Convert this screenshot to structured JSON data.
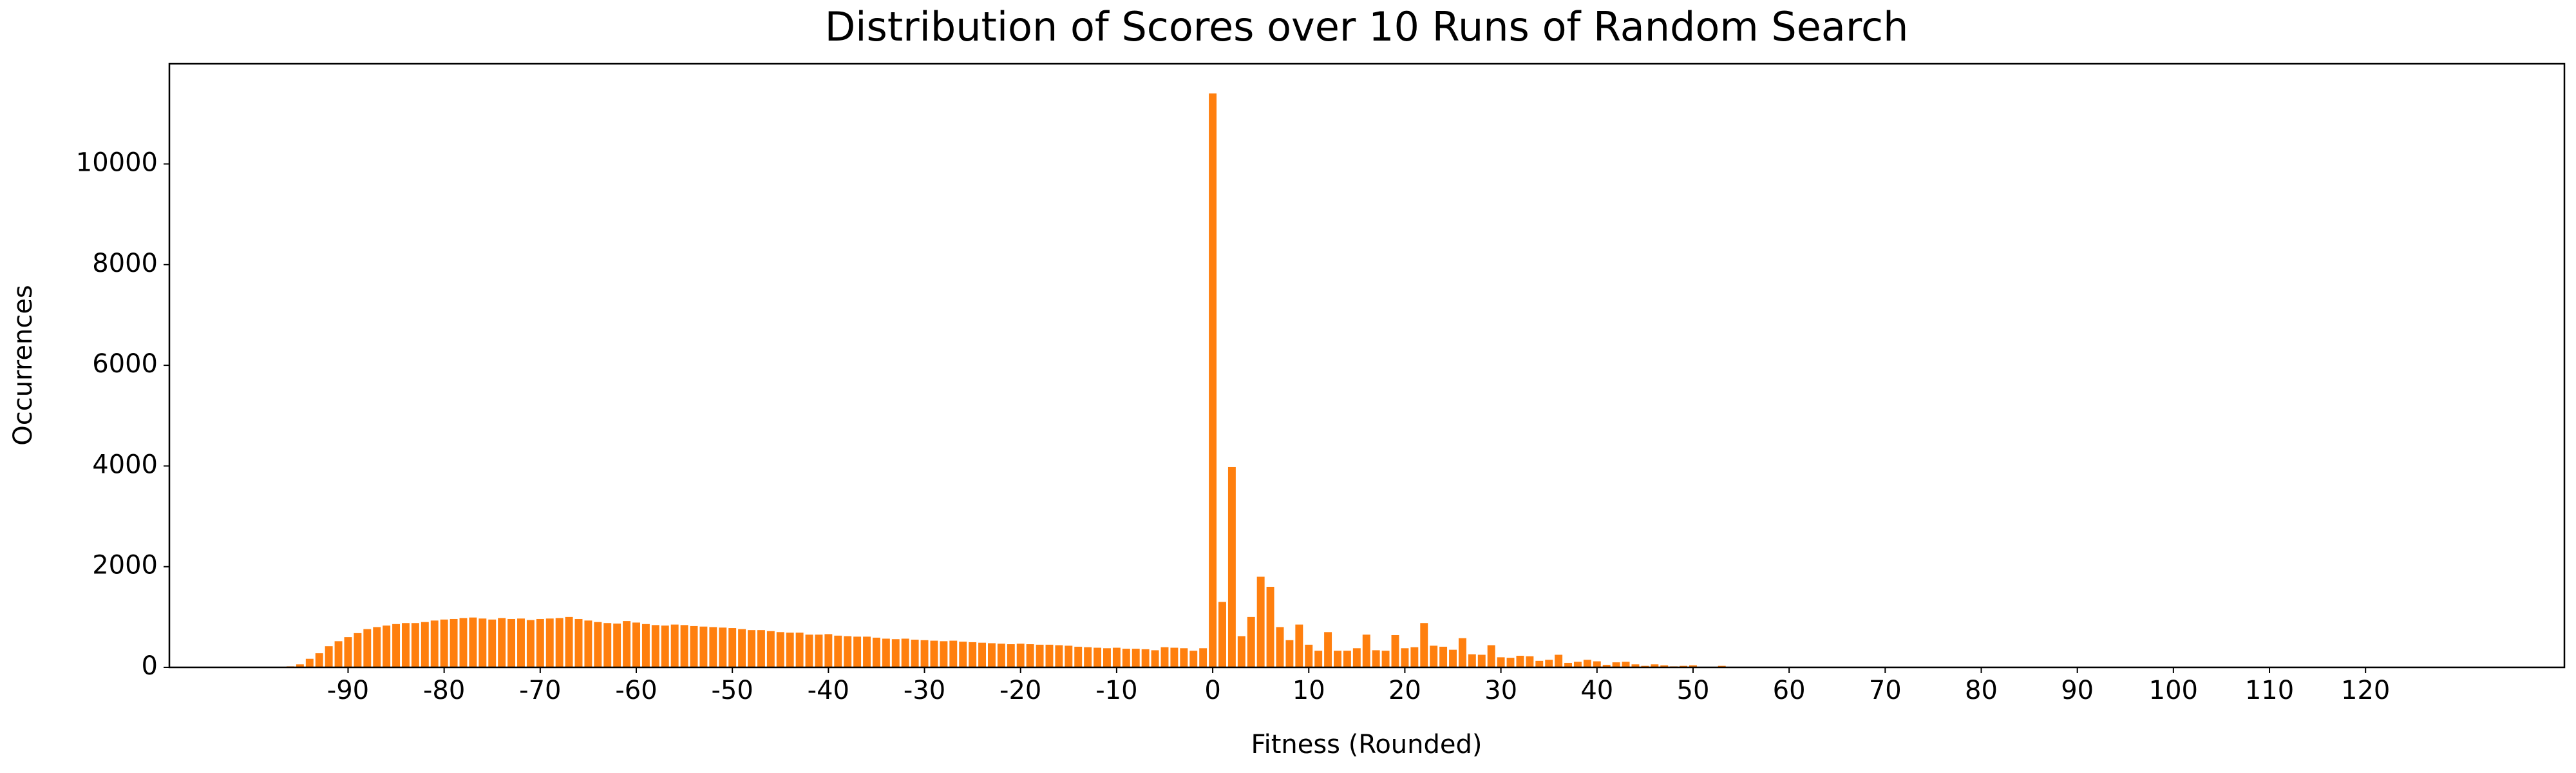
{
  "chart_data": {
    "type": "bar",
    "title": "Distribution of Scores over 10 Runs of Random Search",
    "x_label": "Fitness (Rounded)",
    "y_label": "Occurrences",
    "color": "#ff7f0e",
    "x": [
      -96,
      -95,
      -94,
      -93,
      -92,
      -91,
      -90,
      -89,
      -88,
      -87,
      -86,
      -85,
      -84,
      -83,
      -82,
      -81,
      -80,
      -79,
      -78,
      -77,
      -76,
      -75,
      -74,
      -73,
      -72,
      -71,
      -70,
      -69,
      -68,
      -67,
      -66,
      -65,
      -64,
      -63,
      -62,
      -61,
      -60,
      -59,
      -58,
      -57,
      -56,
      -55,
      -54,
      -53,
      -52,
      -51,
      -50,
      -49,
      -48,
      -47,
      -46,
      -45,
      -44,
      -43,
      -42,
      -41,
      -40,
      -39,
      -38,
      -37,
      -36,
      -35,
      -34,
      -33,
      -32,
      -31,
      -30,
      -29,
      -28,
      -27,
      -26,
      -25,
      -24,
      -23,
      -22,
      -21,
      -20,
      -19,
      -18,
      -17,
      -16,
      -15,
      -14,
      -13,
      -12,
      -11,
      -10,
      -9,
      -8,
      -7,
      -6,
      -5,
      -4,
      -3,
      -2,
      -1,
      0,
      1,
      2,
      3,
      4,
      5,
      6,
      7,
      8,
      9,
      10,
      11,
      12,
      13,
      14,
      15,
      16,
      17,
      18,
      19,
      20,
      21,
      22,
      23,
      24,
      25,
      26,
      27,
      28,
      29,
      30,
      31,
      32,
      33,
      34,
      35,
      36,
      37,
      38,
      39,
      40,
      41,
      42,
      43,
      44,
      45,
      46,
      47,
      48,
      49,
      50,
      51,
      52,
      53
    ],
    "values": [
      20,
      60,
      170,
      280,
      420,
      520,
      600,
      680,
      760,
      800,
      830,
      860,
      880,
      880,
      900,
      930,
      950,
      960,
      980,
      990,
      970,
      950,
      980,
      960,
      970,
      940,
      960,
      970,
      980,
      1000,
      960,
      930,
      900,
      880,
      870,
      920,
      890,
      860,
      840,
      830,
      850,
      840,
      820,
      810,
      800,
      790,
      780,
      760,
      740,
      740,
      720,
      700,
      690,
      690,
      650,
      650,
      660,
      630,
      620,
      610,
      610,
      590,
      570,
      560,
      570,
      550,
      540,
      530,
      520,
      530,
      510,
      500,
      490,
      480,
      470,
      460,
      470,
      460,
      450,
      450,
      440,
      430,
      410,
      400,
      390,
      380,
      390,
      370,
      370,
      360,
      340,
      400,
      390,
      380,
      330,
      380,
      11400,
      1300,
      3980,
      620,
      1000,
      1800,
      1600,
      800,
      540,
      850,
      450,
      330,
      700,
      330,
      330,
      380,
      650,
      340,
      330,
      640,
      380,
      400,
      880,
      430,
      410,
      350,
      580,
      260,
      250,
      440,
      200,
      190,
      230,
      220,
      130,
      150,
      250,
      90,
      110,
      150,
      120,
      50,
      100,
      110,
      60,
      30,
      60,
      40,
      20,
      30,
      40,
      10,
      10,
      30
    ],
    "xlim": [
      -108.6,
      140.7
    ],
    "xticks": [
      -90,
      -80,
      -70,
      -60,
      -50,
      -40,
      -30,
      -20,
      -10,
      0,
      10,
      20,
      30,
      40,
      50,
      60,
      70,
      80,
      90,
      100,
      110,
      120
    ],
    "ylim": [
      0,
      11990
    ],
    "yticks": [
      0,
      2000,
      4000,
      6000,
      8000,
      10000
    ]
  }
}
